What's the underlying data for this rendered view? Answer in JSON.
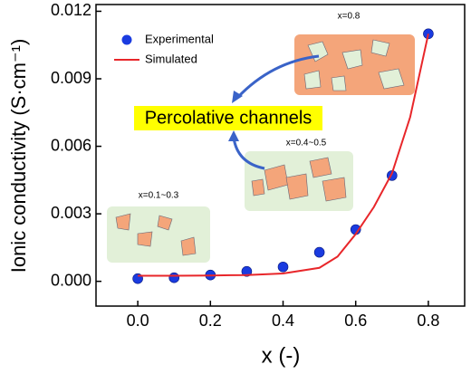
{
  "chart_data": {
    "type": "scatter",
    "x_label": "x (-)",
    "y_label": "Ionic conductivity (S·cm⁻¹)",
    "xlim": [
      -0.115,
      0.9
    ],
    "ylim": [
      -0.0011,
      0.0123
    ],
    "xticks": [
      {
        "value": 0,
        "label": "0.0"
      },
      0.2,
      0.4,
      0.6,
      0.8
    ],
    "yticks": [
      {
        "value": 0,
        "label": "0.000"
      },
      0.003,
      0.006,
      0.009,
      0.012
    ],
    "series": [
      {
        "name": "Experimental",
        "type": "scatter",
        "color": "#1a3be0",
        "x": [
          0,
          0.1,
          0.2,
          0.3,
          0.4,
          0.5,
          0.6,
          0.7,
          0.8
        ],
        "values": [
          0.00012,
          0.00016,
          0.00028,
          0.00044,
          0.00064,
          0.00129,
          0.0023,
          0.0047,
          0.011
        ]
      },
      {
        "name": "Simulated",
        "type": "line",
        "color": "#e8262a",
        "x": [
          0,
          0.1,
          0.2,
          0.3,
          0.4,
          0.5,
          0.55,
          0.6,
          0.65,
          0.7,
          0.75,
          0.8
        ],
        "values": [
          0.00025,
          0.00025,
          0.00026,
          0.00028,
          0.00035,
          0.0006,
          0.0011,
          0.0021,
          0.0033,
          0.0048,
          0.0073,
          0.011
        ]
      }
    ],
    "annotations": [
      "Percolative channels",
      "x=0.8",
      "x=0.4~0.5",
      "x=0.1~0.3"
    ]
  }
}
